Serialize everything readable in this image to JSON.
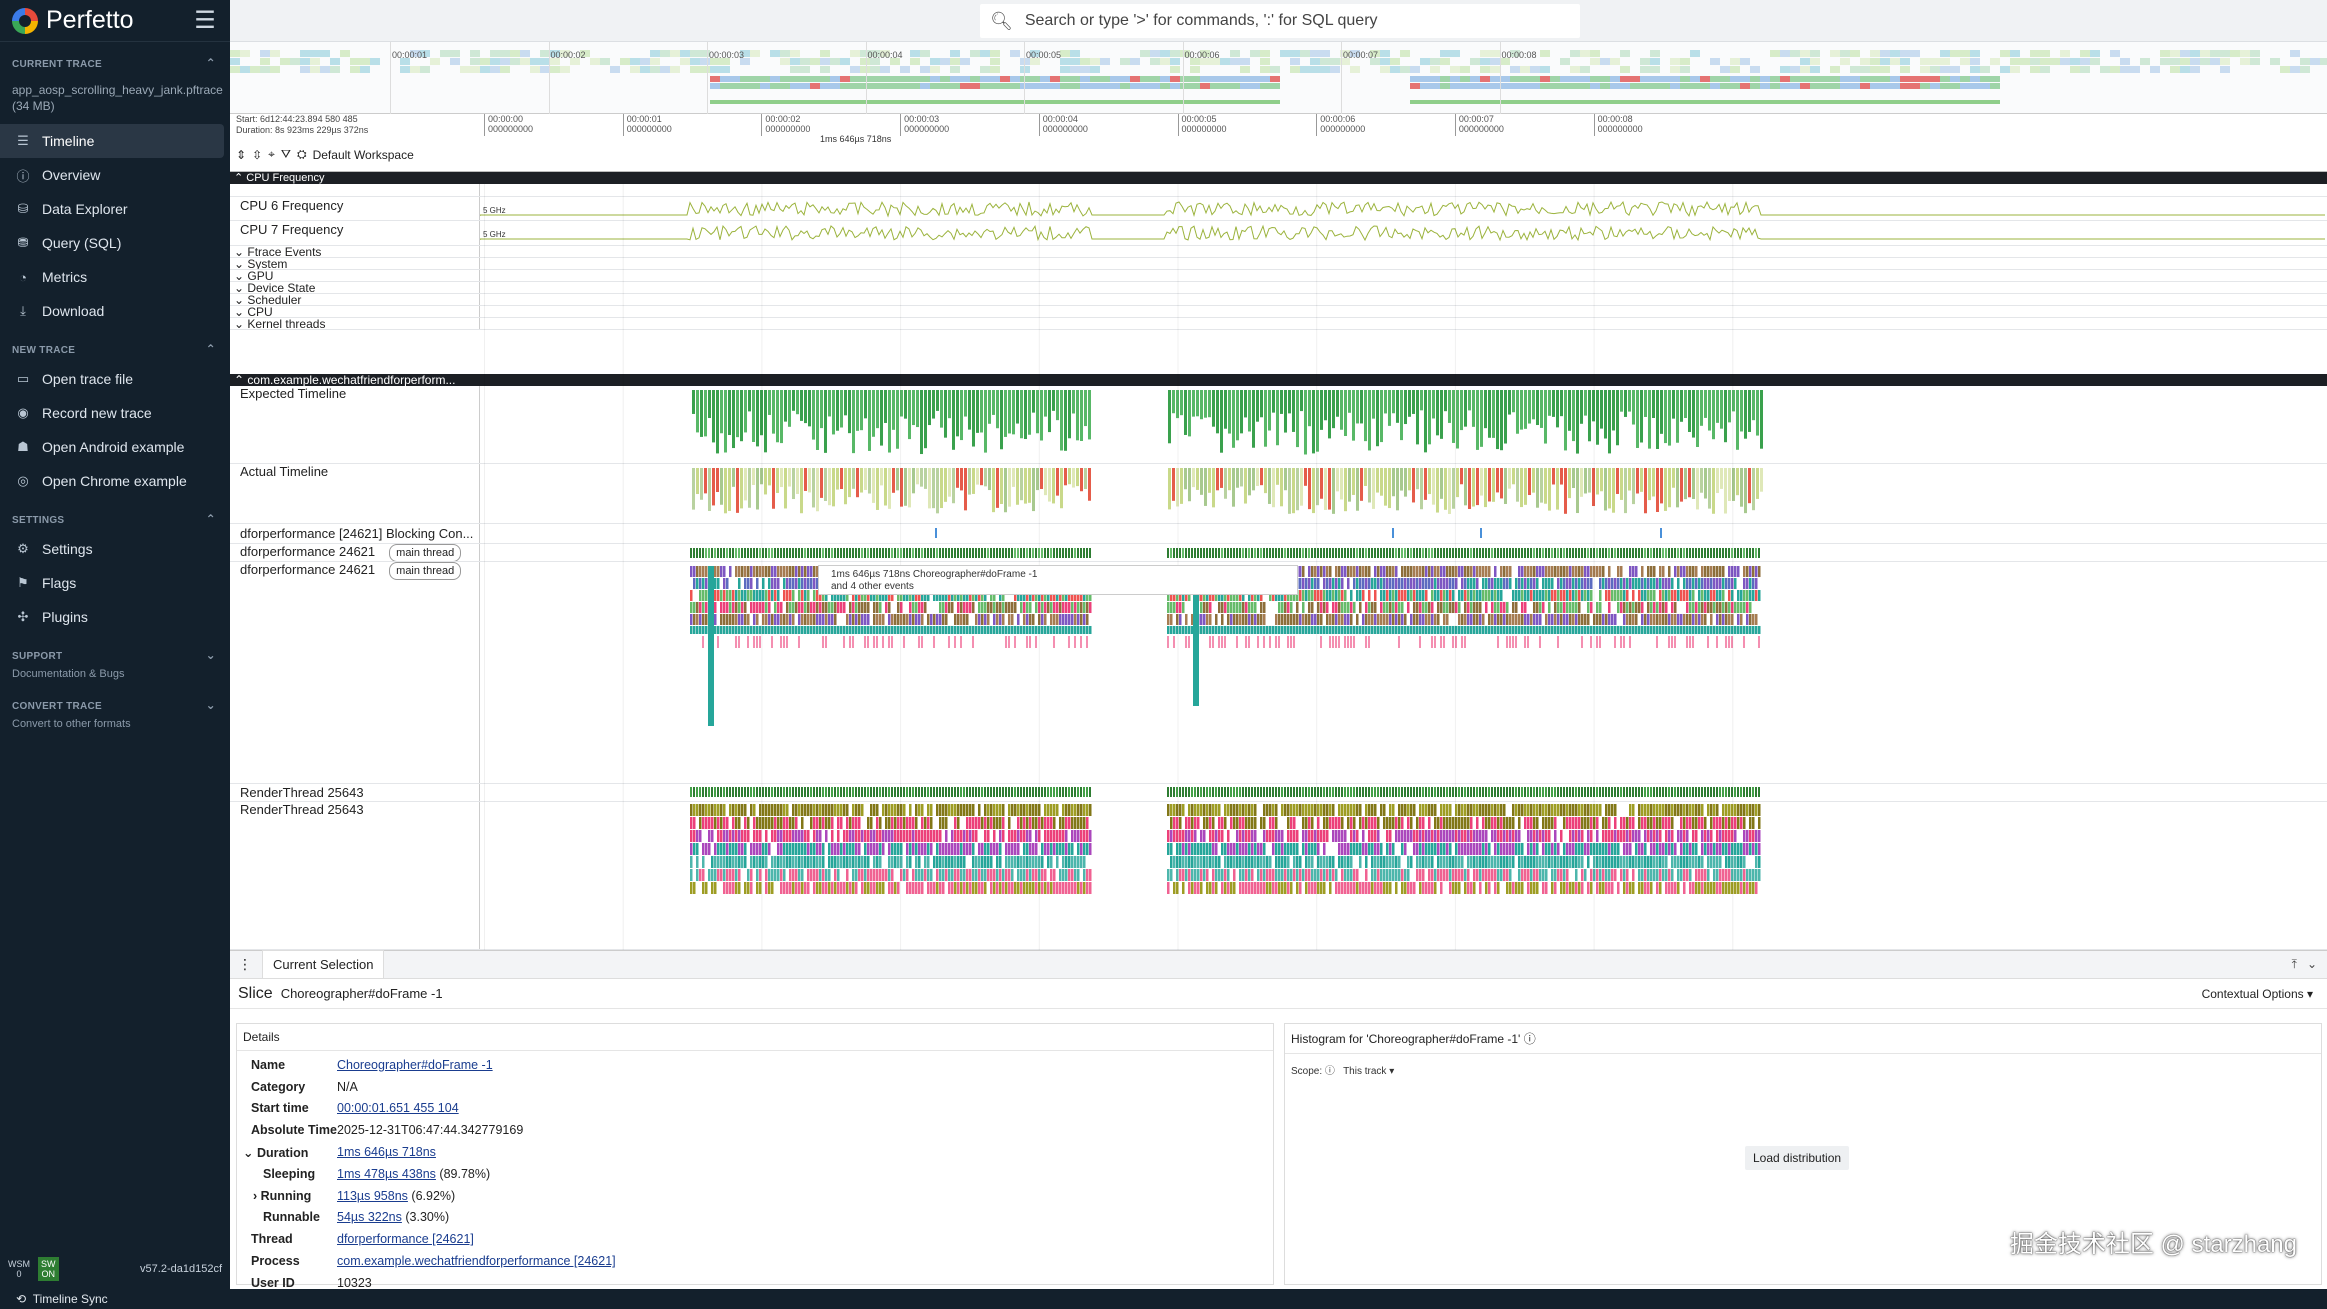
{
  "app": {
    "title": "Perfetto",
    "version": "v57.2-da1d152cf"
  },
  "sidebar": {
    "current_trace": {
      "label": "CURRENT TRACE",
      "file": "app_aosp_scrolling_heavy_jank.pftrace (34 MB)"
    },
    "nav": [
      {
        "label": "Timeline",
        "icon": "timeline-icon",
        "active": true
      },
      {
        "label": "Overview",
        "icon": "info-icon"
      },
      {
        "label": "Data Explorer",
        "icon": "database-icon"
      },
      {
        "label": "Query (SQL)",
        "icon": "sql-icon"
      },
      {
        "label": "Metrics",
        "icon": "gauge-icon"
      },
      {
        "label": "Download",
        "icon": "download-icon"
      }
    ],
    "new_trace": {
      "label": "NEW TRACE",
      "items": [
        {
          "label": "Open trace file",
          "icon": "folder-icon"
        },
        {
          "label": "Record new trace",
          "icon": "record-icon"
        },
        {
          "label": "Open Android example",
          "icon": "android-icon"
        },
        {
          "label": "Open Chrome example",
          "icon": "chrome-icon"
        }
      ]
    },
    "settings": {
      "label": "SETTINGS",
      "items": [
        {
          "label": "Settings",
          "icon": "gear-icon"
        },
        {
          "label": "Flags",
          "icon": "flag-icon"
        },
        {
          "label": "Plugins",
          "icon": "puzzle-icon"
        }
      ]
    },
    "support": {
      "label": "SUPPORT",
      "sub": "Documentation & Bugs"
    },
    "convert": {
      "label": "CONVERT TRACE",
      "sub": "Convert to other formats"
    },
    "footer": {
      "wsm": "WSM",
      "wsm_val": "0",
      "sw": "SW",
      "sw_val": "ON"
    }
  },
  "status_bar": {
    "label": "Timeline Sync"
  },
  "omnibox": {
    "placeholder": "Search or type '>' for commands, ':' for SQL query"
  },
  "overview_ticks": [
    "00:00:01",
    "00:00:02",
    "00:00:03",
    "00:00:04",
    "00:00:05",
    "00:00:06",
    "00:00:07",
    "00:00:08"
  ],
  "time_axis": {
    "start": "Start: 6d12:44:23.894 580 485",
    "duration": "Duration: 8s 923ms 229µs 372ns",
    "workspace": "Default Workspace",
    "selection_label": "1ms 646µs 718ns",
    "ticks": [
      {
        "t": "00:00:00",
        "s": "000000000"
      },
      {
        "t": "00:00:01",
        "s": "000000000"
      },
      {
        "t": "00:00:02",
        "s": "000000000"
      },
      {
        "t": "00:00:03",
        "s": "000000000"
      },
      {
        "t": "00:00:04",
        "s": "000000000"
      },
      {
        "t": "00:00:05",
        "s": "000000000"
      },
      {
        "t": "00:00:06",
        "s": "000000000"
      },
      {
        "t": "00:00:07",
        "s": "000000000"
      },
      {
        "t": "00:00:08",
        "s": "000000000"
      }
    ]
  },
  "tracks": {
    "cpu_freq_group": "CPU Frequency",
    "cpu6": "CPU 6 Frequency",
    "cpu7": "CPU 7 Frequency",
    "freq_label": "5 GHz",
    "groups": [
      "Ftrace Events",
      "System",
      "GPU",
      "Device State",
      "Scheduler",
      "CPU",
      "Kernel threads"
    ],
    "process_group": "com.example.wechatfriendforperform...",
    "expected": "Expected Timeline",
    "actual": "Actual Timeline",
    "blocking": "dforperformance [24621] Blocking Con...",
    "main1": "dforperformance 24621",
    "main2": "dforperformance 24621",
    "main_tag": "main thread",
    "render1": "RenderThread 25643",
    "render2": "RenderThread 25643",
    "tooltip1": "1ms 646µs 718ns Choreographer#doFrame -1",
    "tooltip2": "and 4 other events"
  },
  "panel": {
    "tab": "Current Selection",
    "slice_label": "Slice",
    "slice_name": "Choreographer#doFrame -1",
    "contextual": "Contextual Options",
    "details_title": "Details",
    "rows": [
      {
        "k": "Name",
        "v": "Choreographer#doFrame -1",
        "link": true
      },
      {
        "k": "Category",
        "v": "N/A"
      },
      {
        "k": "Start time",
        "v": "00:00:01.651 455 104",
        "link": true
      },
      {
        "k": "Absolute Time",
        "v": "2025-12-31T06:47:44.342779169"
      },
      {
        "k": "Duration",
        "v": "1ms 646µs 718ns",
        "link": true
      },
      {
        "k": "Sleeping",
        "v": "1ms 478µs 438ns",
        "extra": "(89.78%)",
        "link": true,
        "indent": true
      },
      {
        "k": "Running",
        "v": "113µs 958ns",
        "extra": "(6.92%)",
        "link": true,
        "indent": true
      },
      {
        "k": "Runnable",
        "v": "54µs 322ns",
        "extra": "(3.30%)",
        "link": true,
        "indent": true
      },
      {
        "k": "Thread",
        "v": "dforperformance [24621]",
        "link": true
      },
      {
        "k": "Process",
        "v": "com.example.wechatfriendforperformance [24621]",
        "link": true
      },
      {
        "k": "User ID",
        "v": "10323"
      }
    ],
    "histogram_title": "Histogram for 'Choreographer#doFrame -1'",
    "scope_label": "Scope:",
    "scope_value": "This track",
    "load_button": "Load distribution"
  },
  "watermark": "掘金技术社区 @ starzhang"
}
